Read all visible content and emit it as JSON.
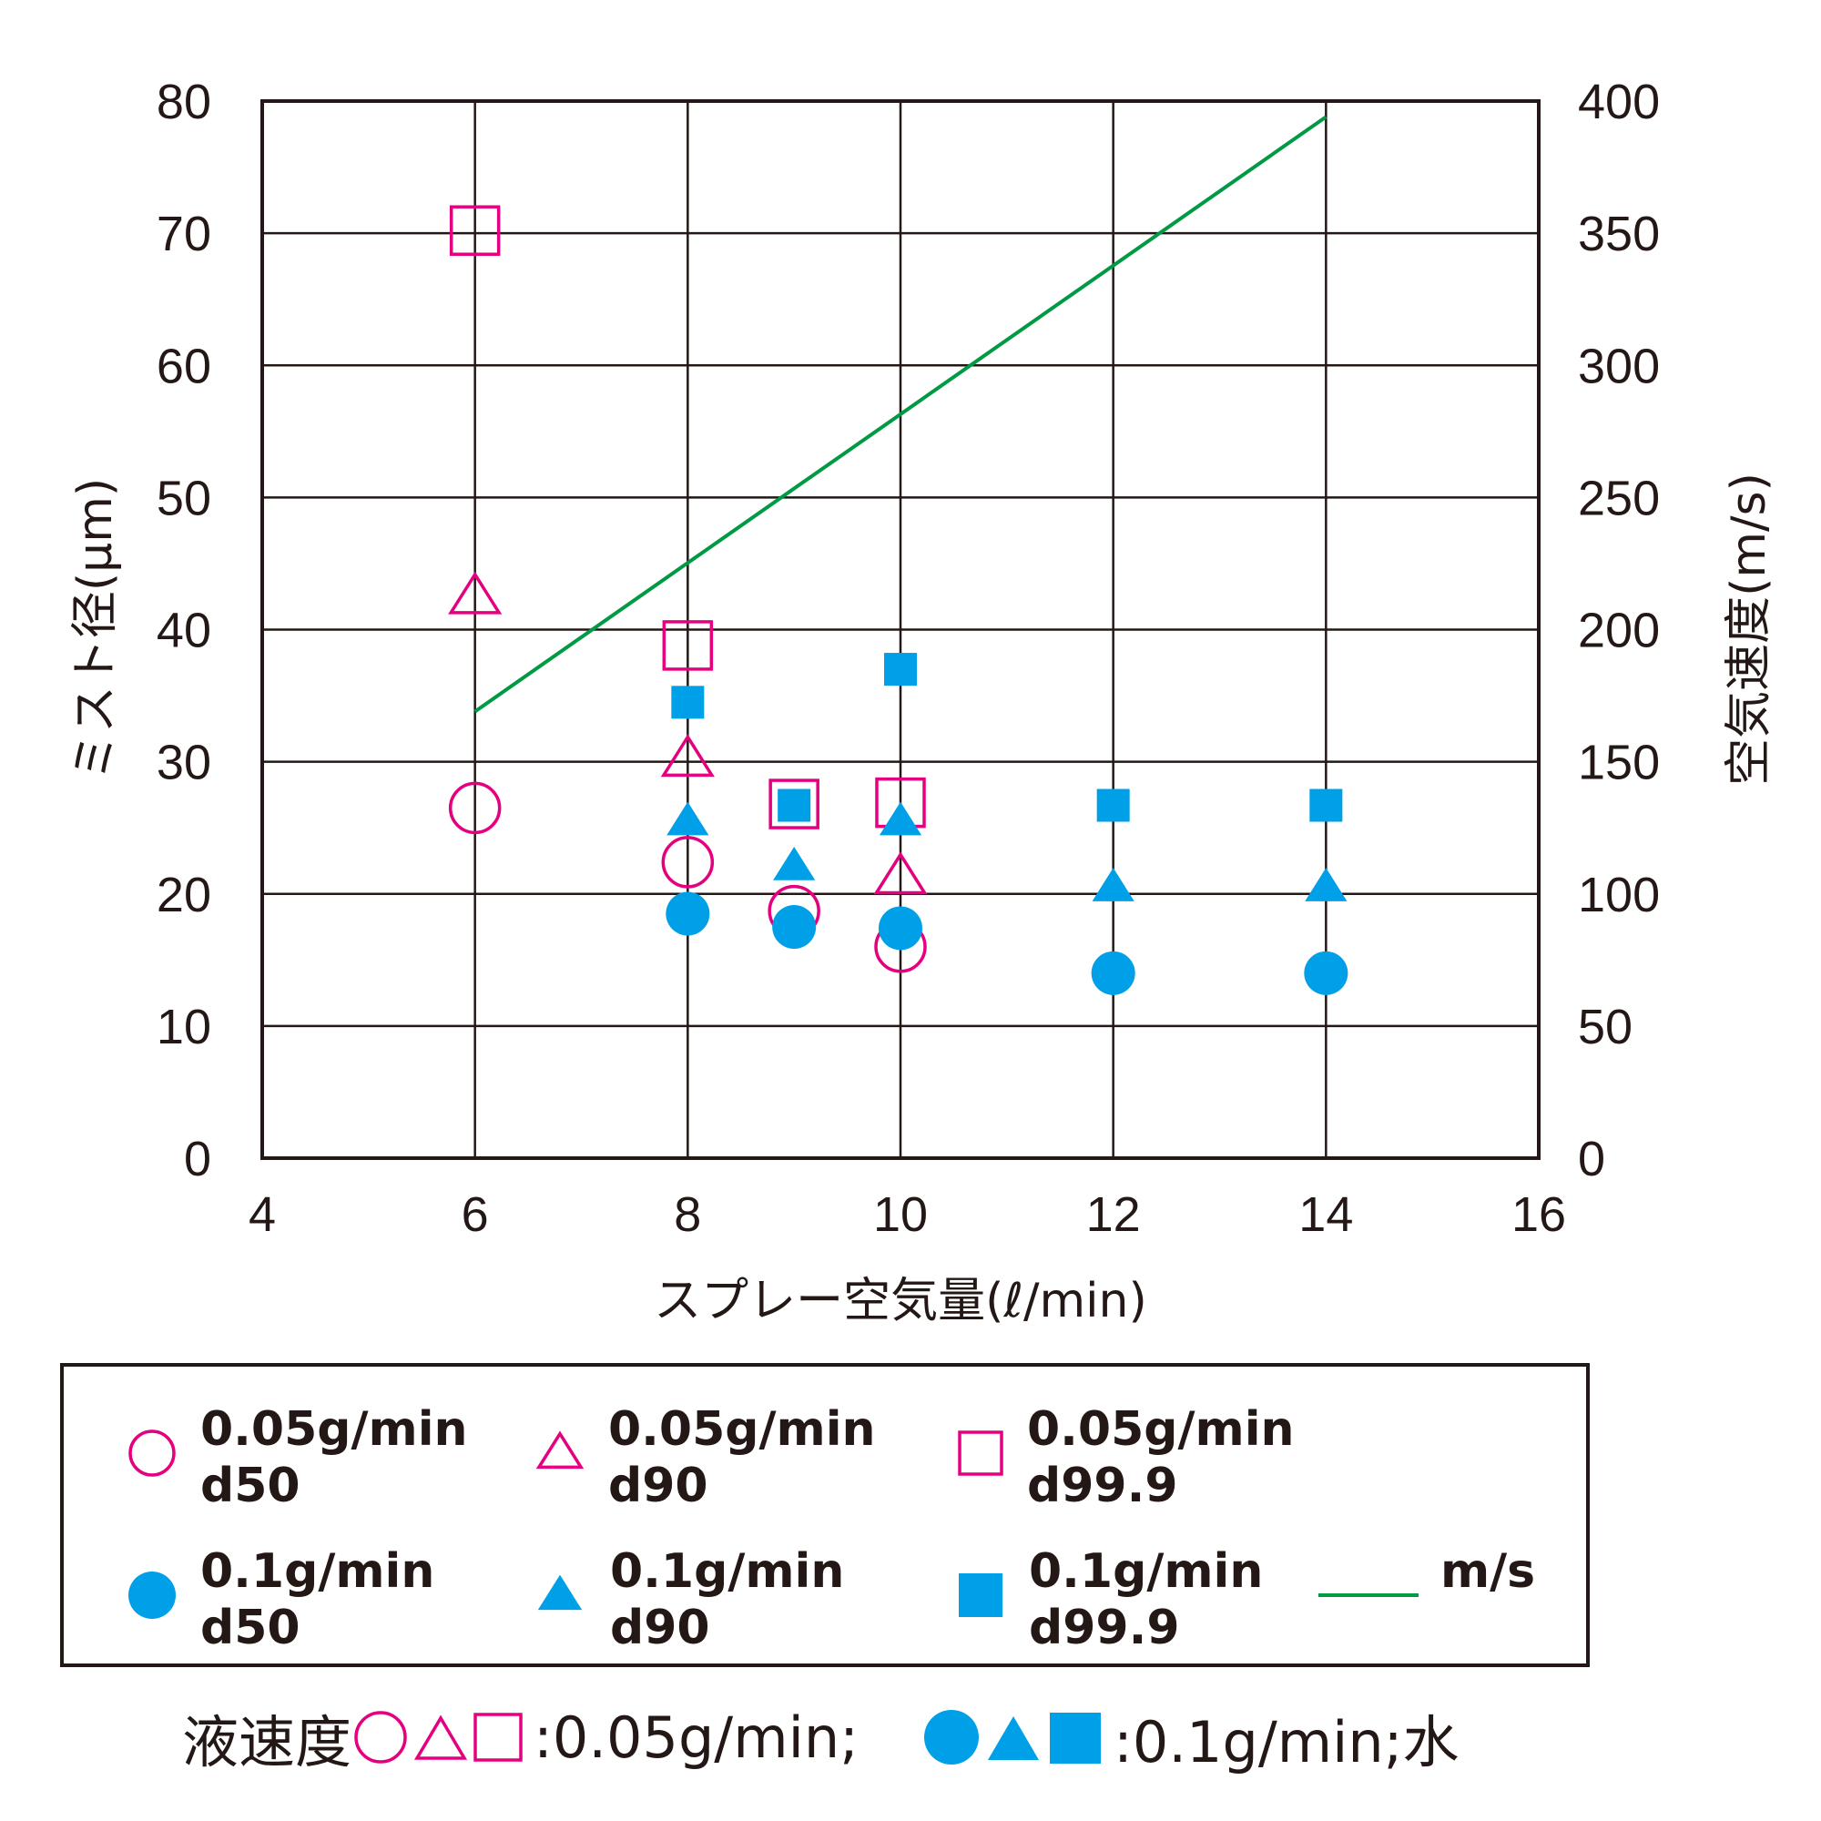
{
  "chart_data": {
    "type": "scatter",
    "xlabel": "スプレー空気量(ℓ/min)",
    "ylabel": "ミスト径(μm)",
    "y2label": "空気速度(m/s)",
    "xlim": [
      4,
      16
    ],
    "ylim": [
      0,
      80
    ],
    "y2lim": [
      0,
      400
    ],
    "xticks": [
      "4",
      "6",
      "8",
      "10",
      "12",
      "14",
      "16"
    ],
    "yticks": [
      "0",
      "10",
      "20",
      "30",
      "40",
      "50",
      "60",
      "70",
      "80"
    ],
    "y2ticks": [
      "0",
      "50",
      "100",
      "150",
      "200",
      "250",
      "300",
      "350",
      "400"
    ],
    "grid": true,
    "legend_placement": "bottom",
    "series": [
      {
        "name": "0.05g/min d50",
        "label_line1": "0.05g/min",
        "label_line2": "d50",
        "marker": "circle",
        "filled": false,
        "color": "#E4007F",
        "x": [
          6,
          8,
          9,
          10
        ],
        "y": [
          26.5,
          22.4,
          18.7,
          16.0
        ]
      },
      {
        "name": "0.05g/min d90",
        "label_line1": "0.05g/min",
        "label_line2": "d90",
        "marker": "triangle",
        "filled": false,
        "color": "#E4007F",
        "x": [
          6,
          8,
          10
        ],
        "y": [
          42.5,
          30.2,
          21.3
        ]
      },
      {
        "name": "0.05g/min d99.9",
        "label_line1": "0.05g/min",
        "label_line2": "d99.9",
        "marker": "square",
        "filled": false,
        "color": "#E4007F",
        "x": [
          6,
          8,
          9,
          10
        ],
        "y": [
          70.2,
          38.8,
          26.8,
          26.9
        ]
      },
      {
        "name": "0.1g/min d50",
        "label_line1": "0.1g/min",
        "label_line2": "d50",
        "marker": "circle",
        "filled": true,
        "color": "#00A0E9",
        "x": [
          8,
          9,
          10,
          12,
          14
        ],
        "y": [
          18.5,
          17.5,
          17.4,
          14.0,
          14.0
        ]
      },
      {
        "name": "0.1g/min d90",
        "label_line1": "0.1g/min",
        "label_line2": "d90",
        "marker": "triangle",
        "filled": true,
        "color": "#00A0E9",
        "x": [
          8,
          9,
          10,
          12,
          14
        ],
        "y": [
          25.5,
          22.1,
          25.5,
          20.5,
          20.5
        ]
      },
      {
        "name": "0.1g/min d99.9",
        "label_line1": "0.1g/min",
        "label_line2": "d99.9",
        "marker": "square",
        "filled": true,
        "color": "#00A0E9",
        "x": [
          8,
          9,
          10,
          12,
          14
        ],
        "y": [
          34.5,
          26.7,
          37.0,
          26.7,
          26.7
        ]
      },
      {
        "name": "m/s",
        "label_line1": "m/s",
        "marker": "line",
        "axis": "right",
        "color": "#009944",
        "x": [
          6,
          14
        ],
        "y": [
          169,
          394
        ]
      }
    ]
  },
  "footnote": {
    "prefix": "液速度",
    "text1": ":0.05g/min;",
    "text2": ":0.1g/min;水",
    "color_open": "#E4007F",
    "color_filled": "#00A0E9"
  }
}
